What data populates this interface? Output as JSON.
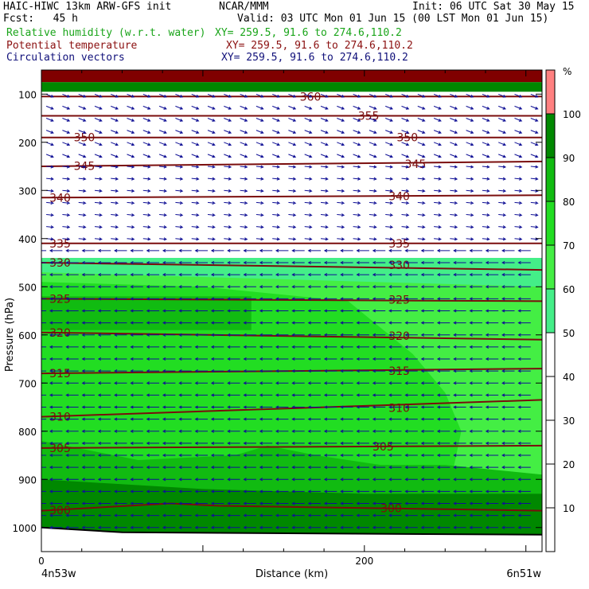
{
  "header": {
    "line1_left": "HAIC-HIWC 13km ARW-GFS init",
    "line1_mid": "NCAR/MMM",
    "line1_right": "Init: 06 UTC Sat 30 May 15",
    "line2_left": "Fcst:   45 h",
    "line2_right": "Valid: 03 UTC Mon 01 Jun 15 (00 LST Mon 01 Jun 15)",
    "field1_name": "Relative humidity (w.r.t. water)",
    "field1_xy": "XY= 259.5, 91.6 to 274.6,110.2",
    "field2_name": "Potential temperature",
    "field2_xy": "XY= 259.5, 91.6 to 274.6,110.2",
    "field3_name": "Circulation vectors",
    "field3_xy": "XY= 259.5, 91.6 to 274.6,110.2"
  },
  "colors": {
    "rh_label": "#1aa51a",
    "theta_label": "#8b1010",
    "vector_label": "#10107a",
    "theta_line": "#7a0d0d",
    "vector": "#101095"
  },
  "chart_data": {
    "type": "heatmap",
    "xlabel": "Distance (km)",
    "ylabel": "Pressure (hPa)",
    "xlim": [
      0,
      310
    ],
    "ylim": [
      1050,
      50
    ],
    "x_ticks": [
      0,
      200
    ],
    "x_end_labels": [
      "4n53w",
      "6n51w"
    ],
    "y_ticks": [
      100,
      200,
      300,
      400,
      500,
      600,
      700,
      800,
      900,
      1000
    ],
    "colorbar": {
      "unit": "%",
      "ticks": [
        10,
        20,
        30,
        40,
        50,
        60,
        70,
        80,
        90,
        100
      ],
      "bins": [
        {
          "from": 50,
          "to": 60,
          "color": "#44ee88"
        },
        {
          "from": 60,
          "to": 70,
          "color": "#44ee44"
        },
        {
          "from": 70,
          "to": 80,
          "color": "#22dd22"
        },
        {
          "from": 80,
          "to": 90,
          "color": "#11bb11"
        },
        {
          "from": 90,
          "to": 100,
          "color": "#008800"
        },
        {
          "from": 100,
          "to": 110,
          "color": "#ff8080"
        },
        {
          "from": 110,
          "to": 120,
          "color": "#800000"
        }
      ]
    },
    "rh_regions": [
      {
        "value": 55,
        "x": [
          0,
          310,
          310,
          0
        ],
        "y": [
          440,
          440,
          1050,
          1050
        ]
      },
      {
        "value": 65,
        "x": [
          0,
          310,
          310,
          140,
          0
        ],
        "y": [
          470,
          500,
          1050,
          1050,
          1050
        ]
      },
      {
        "value": 75,
        "x": [
          0,
          100,
          190,
          230,
          250,
          260,
          255,
          200,
          140,
          0
        ],
        "y": [
          490,
          500,
          530,
          640,
          720,
          800,
          880,
          920,
          900,
          880
        ]
      },
      {
        "value": 85,
        "x": [
          0,
          130,
          130,
          0
        ],
        "y": [
          520,
          520,
          590,
          590
        ]
      },
      {
        "value": 85,
        "x": [
          0,
          60,
          120,
          140,
          170,
          210,
          250,
          310,
          310,
          0
        ],
        "y": [
          820,
          860,
          850,
          830,
          850,
          870,
          870,
          890,
          1050,
          1050
        ]
      },
      {
        "value": 95,
        "x": [
          0,
          100,
          200,
          310,
          310,
          0
        ],
        "y": [
          900,
          920,
          930,
          930,
          1050,
          1050
        ]
      },
      {
        "value": 95,
        "x": [
          0,
          310,
          310,
          0
        ],
        "y": [
          75,
          75,
          95,
          95
        ]
      },
      {
        "value": 115,
        "x": [
          0,
          310,
          310,
          0
        ],
        "y": [
          50,
          50,
          75,
          75
        ]
      }
    ],
    "theta_contours": [
      {
        "level": 360,
        "x": [
          0,
          310
        ],
        "y": [
          105,
          105
        ],
        "label_x": 160
      },
      {
        "level": 355,
        "x": [
          0,
          310
        ],
        "y": [
          145,
          145
        ],
        "label_x": 196
      },
      {
        "level": 350,
        "x": [
          0,
          310
        ],
        "y": [
          190,
          190
        ],
        "label_x": 20
      },
      {
        "level": 345,
        "x": [
          0,
          310
        ],
        "y": [
          250,
          240
        ],
        "label_x": 20
      },
      {
        "level": 340,
        "x": [
          0,
          310
        ],
        "y": [
          315,
          310
        ],
        "label_x": 5
      },
      {
        "level": 335,
        "x": [
          0,
          310
        ],
        "y": [
          410,
          410
        ],
        "label_x": 5
      },
      {
        "level": 330,
        "x": [
          0,
          310
        ],
        "y": [
          450,
          465
        ],
        "label_x": 5
      },
      {
        "level": 325,
        "x": [
          0,
          310
        ],
        "y": [
          525,
          530
        ],
        "label_x": 5
      },
      {
        "level": 320,
        "x": [
          0,
          310
        ],
        "y": [
          595,
          610
        ],
        "label_x": 5
      },
      {
        "level": 315,
        "x": [
          0,
          310
        ],
        "y": [
          680,
          670
        ],
        "label_x": 5
      },
      {
        "level": 310,
        "x": [
          0,
          310
        ],
        "y": [
          770,
          735
        ],
        "label_x": 5
      },
      {
        "level": 305,
        "x": [
          0,
          310
        ],
        "y": [
          835,
          830
        ],
        "label_x": 5
      },
      {
        "level": 300,
        "x": [
          0,
          80,
          110,
          310
        ],
        "y": [
          965,
          950,
          955,
          965
        ],
        "label_x": 5
      }
    ],
    "theta_labels_extra": [
      {
        "level": 350,
        "x": 220,
        "p": 190
      },
      {
        "level": 345,
        "x": 225,
        "p": 245
      },
      {
        "level": 340,
        "x": 215,
        "p": 312
      },
      {
        "level": 335,
        "x": 215,
        "p": 410
      },
      {
        "level": 330,
        "x": 215,
        "p": 455
      },
      {
        "level": 325,
        "x": 215,
        "p": 527
      },
      {
        "level": 320,
        "x": 215,
        "p": 602
      },
      {
        "level": 315,
        "x": 215,
        "p": 675
      },
      {
        "level": 310,
        "x": 215,
        "p": 752
      },
      {
        "level": 305,
        "x": 205,
        "p": 832
      },
      {
        "level": 300,
        "x": 210,
        "p": 960
      }
    ],
    "terrain": {
      "x": [
        0,
        50,
        310
      ],
      "y": [
        1000,
        1010,
        1015
      ]
    },
    "vectors": {
      "u_upper": 4,
      "u_lower": -7,
      "w_upper": 1
    }
  }
}
